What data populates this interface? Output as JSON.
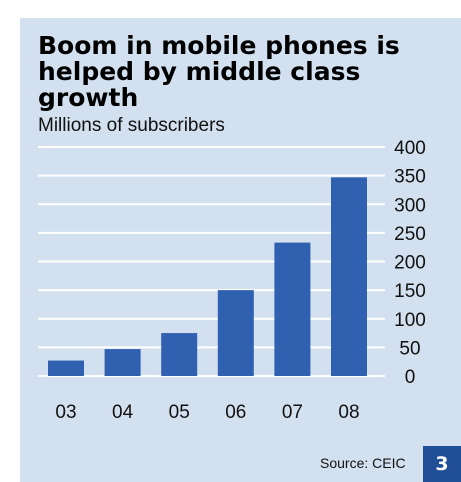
{
  "title": "Boom in mobile phones is helped by middle class growth",
  "subtitle": "Millions of subscribers",
  "source": "Source: CEIC",
  "badge": "3",
  "colors": {
    "background": "#d3e0ef",
    "bar": "#3060b0",
    "gridline": "#ffffff",
    "badge": "#1f4e96"
  },
  "chart_data": {
    "type": "bar",
    "title": "Boom in mobile phones is helped by middle class growth",
    "ylabel": "Millions of subscribers",
    "xlabel": "",
    "categories": [
      "03",
      "04",
      "05",
      "06",
      "07",
      "08"
    ],
    "values": [
      27,
      47,
      75,
      150,
      233,
      347
    ],
    "ylim": [
      0,
      400
    ],
    "yticks": [
      0,
      50,
      100,
      150,
      200,
      250,
      300,
      350,
      400
    ],
    "y_axis_side": "right",
    "grid": true,
    "legend": "none"
  }
}
